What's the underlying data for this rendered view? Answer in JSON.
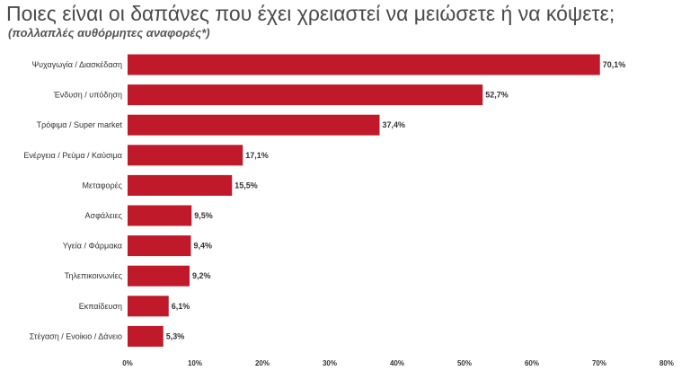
{
  "chart_data": {
    "type": "bar",
    "orientation": "horizontal",
    "title": "Ποιες είναι οι δαπάνες που έχει χρειαστεί να μειώσετε ή να κόψετε;",
    "subtitle": "(πολλαπλές αυθόρμητες αναφορές*)",
    "categories": [
      "Ψυχαγωγία / Διασκέδαση",
      "Ένδυση / υπόδηση",
      "Τρόφιμα / Super market",
      "Ενέργεια / Ρεύμα / Καύσιμα",
      "Μεταφορές",
      "Ασφάλειες",
      "Υγεία / Φάρμακα",
      "Τηλεπικοινωνίες",
      "Εκπαίδευση",
      "Στέγαση / Ενοίκιο / Δάνειο"
    ],
    "values": [
      70.1,
      52.7,
      37.4,
      17.1,
      15.5,
      9.5,
      9.4,
      9.2,
      6.1,
      5.3
    ],
    "value_labels": [
      "70,1%",
      "52,7%",
      "37,4%",
      "17,1%",
      "15,5%",
      "9,5%",
      "9,4%",
      "9,2%",
      "6,1%",
      "5,3%"
    ],
    "xlim": [
      0,
      80
    ],
    "x_ticks": [
      0,
      10,
      20,
      30,
      40,
      50,
      60,
      70,
      80
    ],
    "x_tick_labels": [
      "0%",
      "10%",
      "20%",
      "30%",
      "40%",
      "50%",
      "60%",
      "70%",
      "80%"
    ],
    "grid": false,
    "legend": "none",
    "bar_color": "#c0192a"
  }
}
